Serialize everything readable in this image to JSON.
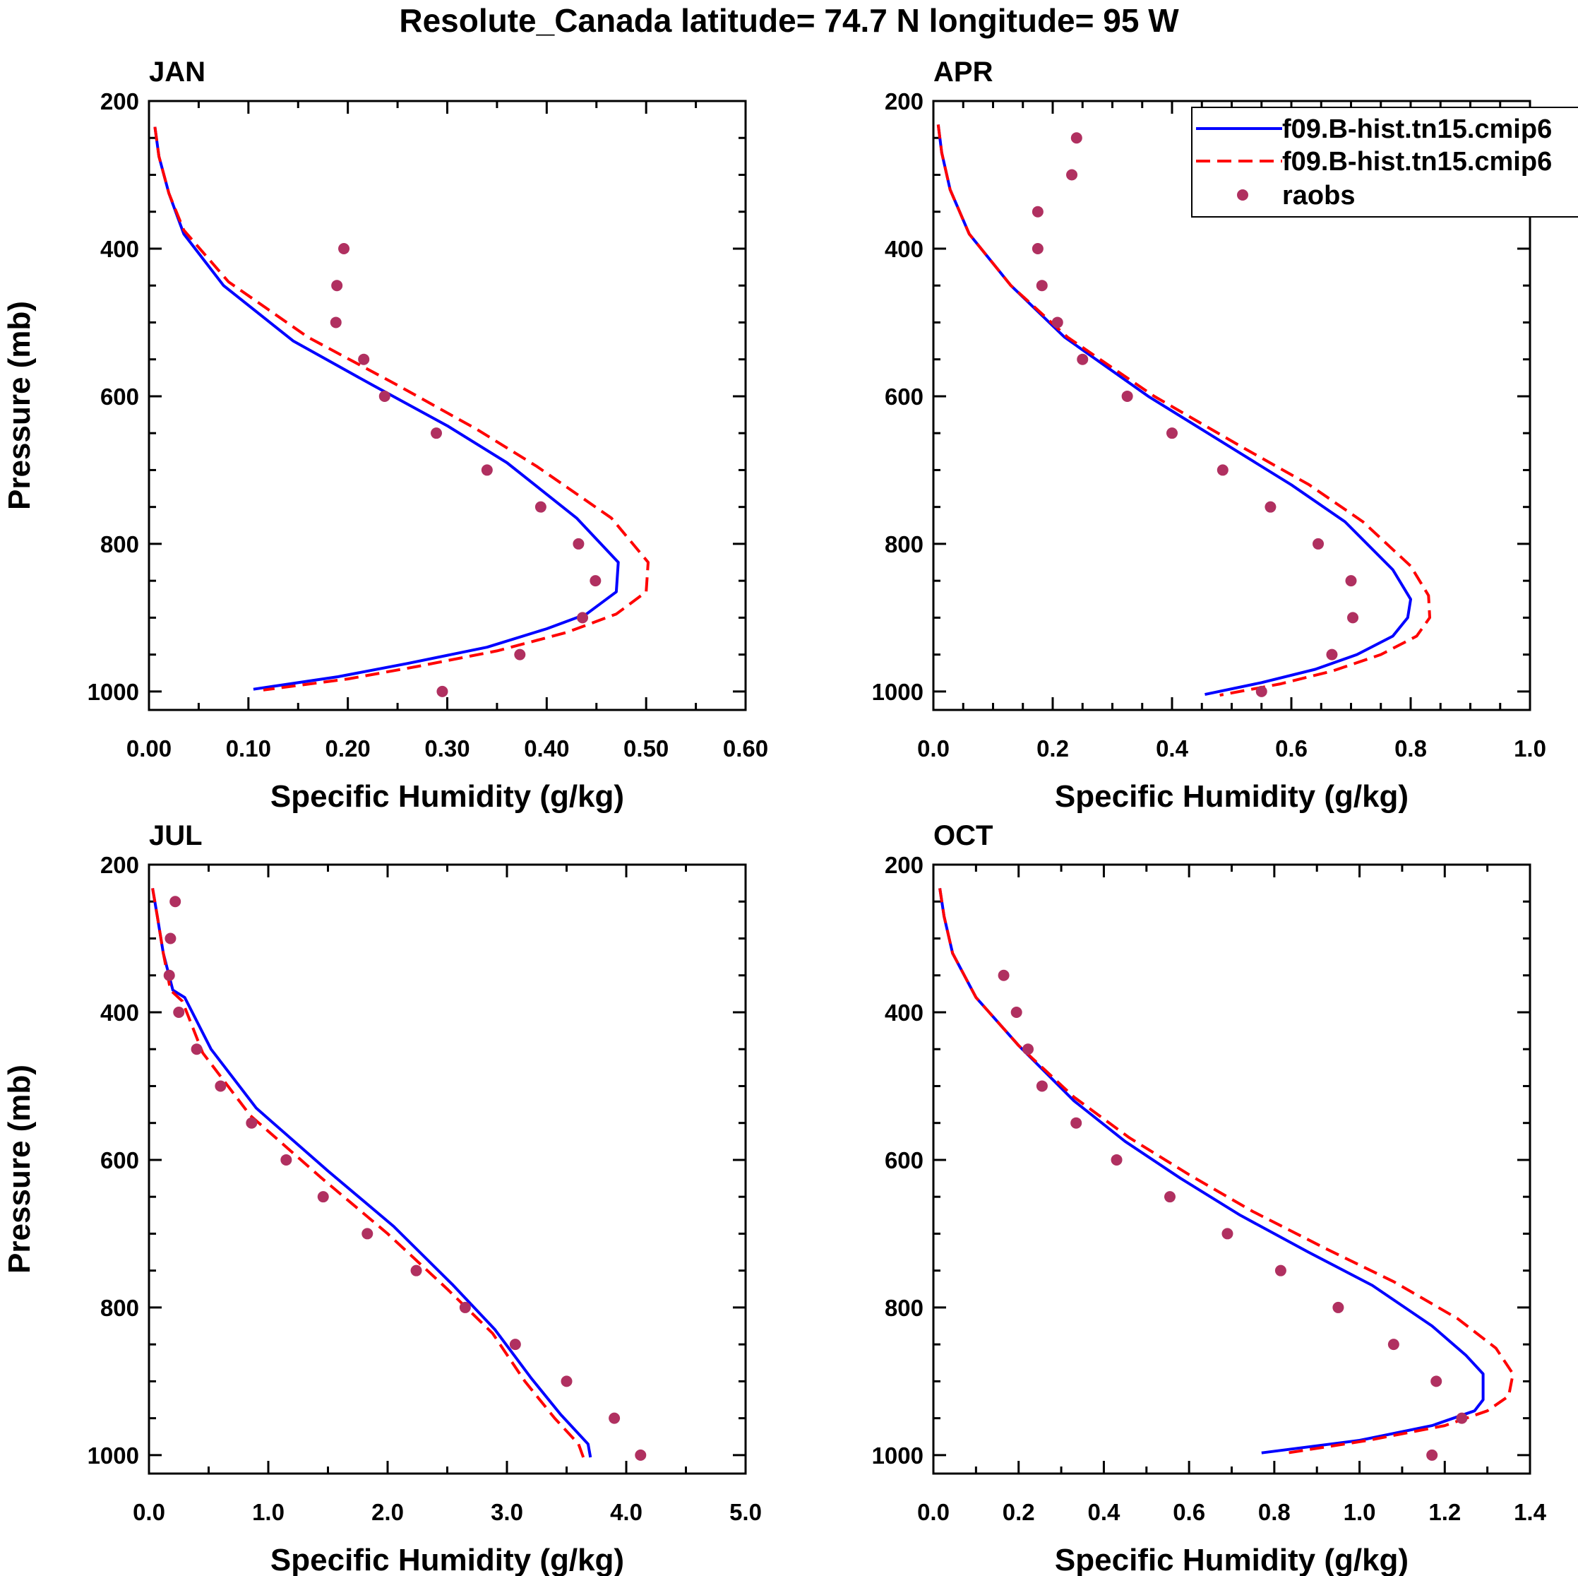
{
  "title": "Resolute_Canada  latitude= 74.7 N longitude= 95 W",
  "colors": {
    "model1": "#0000ff",
    "model2": "#ff0000",
    "raobs": "#b03060",
    "axis": "#000000"
  },
  "legend": {
    "position": "top-right of APR panel",
    "entries": [
      {
        "label": "f09.B-hist.tn15.cmip6",
        "style": "solid",
        "color": "#0000ff"
      },
      {
        "label": "f09.B-hist.tn15.cmip6",
        "style": "dashed",
        "color": "#ff0000"
      },
      {
        "label": "raobs",
        "style": "marker",
        "color": "#b03060"
      }
    ]
  },
  "chart_data": [
    {
      "type": "line",
      "panel": "JAN",
      "title": "JAN",
      "xlabel": "Specific Humidity (g/kg)",
      "ylabel": "Pressure (mb)",
      "xlim": [
        0,
        0.6
      ],
      "ylim": [
        200,
        1025
      ],
      "xticks": [
        0,
        0.1,
        0.2,
        0.3,
        0.4,
        0.5,
        0.6
      ],
      "xticklabels": [
        "0.00",
        "0.10",
        "0.20",
        "0.30",
        "0.40",
        "0.50",
        "0.60"
      ],
      "xminor": 0.05,
      "yticks": [
        200,
        400,
        600,
        800,
        1000
      ],
      "yticklabels": [
        "200",
        "400",
        "600",
        "800",
        "1000"
      ],
      "series": [
        {
          "name": "f09.B-hist.tn15.cmip6",
          "style": "solid",
          "x": [
            0.006,
            0.01,
            0.02,
            0.035,
            0.075,
            0.145,
            0.225,
            0.3,
            0.36,
            0.43,
            0.472,
            0.47,
            0.44,
            0.4,
            0.34,
            0.26,
            0.19,
            0.105
          ],
          "y": [
            235,
            275,
            325,
            380,
            450,
            525,
            585,
            640,
            690,
            765,
            825,
            865,
            895,
            915,
            940,
            962,
            980,
            997
          ]
        },
        {
          "name": "f09.B-hist.tn15.cmip6",
          "style": "dashed",
          "x": [
            0.006,
            0.01,
            0.02,
            0.035,
            0.08,
            0.16,
            0.25,
            0.33,
            0.39,
            0.465,
            0.502,
            0.5,
            0.47,
            0.42,
            0.35,
            0.27,
            0.2,
            0.115
          ],
          "y": [
            235,
            275,
            325,
            375,
            445,
            520,
            585,
            645,
            695,
            765,
            825,
            865,
            895,
            920,
            945,
            966,
            983,
            998
          ]
        }
      ],
      "points": {
        "name": "raobs",
        "x": [
          0.196,
          0.189,
          0.188,
          0.216,
          0.237,
          0.289,
          0.34,
          0.394,
          0.432,
          0.449,
          0.436,
          0.373,
          0.295
        ],
        "y": [
          400,
          450,
          500,
          550,
          600,
          650,
          700,
          750,
          800,
          850,
          900,
          950,
          1000
        ]
      }
    },
    {
      "type": "line",
      "panel": "APR",
      "title": "APR",
      "xlabel": "Specific Humidity (g/kg)",
      "ylabel": "",
      "xlim": [
        0,
        1.0
      ],
      "ylim": [
        200,
        1025
      ],
      "xticks": [
        0,
        0.2,
        0.4,
        0.6,
        0.8,
        1.0
      ],
      "xticklabels": [
        "0.0",
        "0.2",
        "0.4",
        "0.6",
        "0.8",
        "1.0"
      ],
      "xminor": 0.05,
      "yticks": [
        200,
        400,
        600,
        800,
        1000
      ],
      "yticklabels": [
        "200",
        "400",
        "600",
        "800",
        "1000"
      ],
      "series": [
        {
          "name": "f09.B-hist.tn15.cmip6",
          "style": "solid",
          "x": [
            0.008,
            0.014,
            0.028,
            0.06,
            0.13,
            0.22,
            0.36,
            0.5,
            0.6,
            0.69,
            0.77,
            0.8,
            0.795,
            0.77,
            0.71,
            0.64,
            0.55,
            0.455
          ],
          "y": [
            232,
            270,
            320,
            380,
            450,
            520,
            600,
            670,
            720,
            770,
            835,
            875,
            900,
            925,
            950,
            970,
            988,
            1004
          ]
        },
        {
          "name": "f09.B-hist.tn15.cmip6",
          "style": "dashed",
          "x": [
            0.008,
            0.014,
            0.028,
            0.06,
            0.13,
            0.225,
            0.37,
            0.52,
            0.63,
            0.72,
            0.8,
            0.83,
            0.832,
            0.81,
            0.75,
            0.67,
            0.58,
            0.48
          ],
          "y": [
            232,
            270,
            320,
            380,
            450,
            520,
            600,
            670,
            720,
            770,
            830,
            870,
            900,
            925,
            950,
            972,
            990,
            1005
          ]
        }
      ],
      "points": {
        "name": "raobs",
        "x": [
          0.24,
          0.232,
          0.175,
          0.175,
          0.182,
          0.208,
          0.25,
          0.325,
          0.4,
          0.485,
          0.565,
          0.645,
          0.7,
          0.703,
          0.668,
          0.55
        ],
        "y": [
          250,
          300,
          350,
          400,
          450,
          500,
          550,
          600,
          650,
          700,
          750,
          800,
          850,
          900,
          950,
          1000
        ]
      }
    },
    {
      "type": "line",
      "panel": "JUL",
      "title": "JUL",
      "xlabel": "Specific Humidity (g/kg)",
      "ylabel": "Pressure (mb)",
      "xlim": [
        0,
        5.0
      ],
      "ylim": [
        200,
        1025
      ],
      "xticks": [
        0,
        1,
        2,
        3,
        4,
        5
      ],
      "xticklabels": [
        "0.0",
        "1.0",
        "2.0",
        "3.0",
        "4.0",
        "5.0"
      ],
      "xminor": 0.5,
      "yticks": [
        200,
        400,
        600,
        800,
        1000
      ],
      "yticklabels": [
        "200",
        "400",
        "600",
        "800",
        "1000"
      ],
      "series": [
        {
          "name": "f09.B-hist.tn15.cmip6",
          "style": "solid",
          "x": [
            0.03,
            0.07,
            0.12,
            0.2,
            0.3,
            0.52,
            0.9,
            1.5,
            2.05,
            2.55,
            2.9,
            3.2,
            3.45,
            3.68,
            3.7
          ],
          "y": [
            232,
            270,
            320,
            370,
            380,
            450,
            530,
            615,
            690,
            770,
            830,
            895,
            945,
            985,
            1003
          ]
        },
        {
          "name": "f09.B-hist.tn15.cmip6",
          "style": "dashed",
          "x": [
            0.03,
            0.07,
            0.12,
            0.18,
            0.28,
            0.45,
            0.85,
            1.45,
            2.0,
            2.5,
            2.88,
            3.15,
            3.4,
            3.6,
            3.64
          ],
          "y": [
            232,
            270,
            320,
            370,
            385,
            455,
            540,
            625,
            700,
            775,
            835,
            900,
            950,
            985,
            1003
          ]
        }
      ],
      "points": {
        "name": "raobs",
        "x": [
          0.22,
          0.18,
          0.17,
          0.25,
          0.4,
          0.6,
          0.86,
          1.15,
          1.46,
          1.83,
          2.24,
          2.65,
          3.07,
          3.5,
          3.9,
          4.12
        ],
        "y": [
          250,
          300,
          350,
          400,
          450,
          500,
          550,
          600,
          650,
          700,
          750,
          800,
          850,
          900,
          950,
          1000
        ]
      }
    },
    {
      "type": "line",
      "panel": "OCT",
      "title": "OCT",
      "xlabel": "Specific Humidity (g/kg)",
      "ylabel": "",
      "xlim": [
        0,
        1.4
      ],
      "ylim": [
        200,
        1025
      ],
      "xticks": [
        0,
        0.2,
        0.4,
        0.6,
        0.8,
        1.0,
        1.2,
        1.4
      ],
      "xticklabels": [
        "0.0",
        "0.2",
        "0.4",
        "0.6",
        "0.8",
        "1.0",
        "1.2",
        "1.4"
      ],
      "xminor": 0.1,
      "yticks": [
        200,
        400,
        600,
        800,
        1000
      ],
      "yticklabels": [
        "200",
        "400",
        "600",
        "800",
        "1000"
      ],
      "series": [
        {
          "name": "f09.B-hist.tn15.cmip6",
          "style": "solid",
          "x": [
            0.015,
            0.025,
            0.045,
            0.1,
            0.2,
            0.33,
            0.45,
            0.58,
            0.72,
            0.88,
            1.03,
            1.17,
            1.25,
            1.29,
            1.29,
            1.27,
            1.17,
            1.0,
            0.77
          ],
          "y": [
            232,
            270,
            320,
            380,
            445,
            520,
            575,
            625,
            675,
            725,
            770,
            825,
            865,
            890,
            925,
            940,
            960,
            980,
            997
          ]
        },
        {
          "name": "f09.B-hist.tn15.cmip6",
          "style": "dashed",
          "x": [
            0.015,
            0.025,
            0.045,
            0.1,
            0.2,
            0.33,
            0.46,
            0.6,
            0.75,
            0.92,
            1.08,
            1.23,
            1.32,
            1.36,
            1.35,
            1.3,
            1.2,
            1.02,
            0.82
          ],
          "y": [
            232,
            270,
            320,
            380,
            445,
            515,
            570,
            620,
            670,
            720,
            765,
            815,
            855,
            890,
            920,
            940,
            960,
            980,
            998
          ]
        }
      ],
      "points": {
        "name": "raobs",
        "x": [
          0.165,
          0.195,
          0.222,
          0.255,
          0.335,
          0.43,
          0.555,
          0.69,
          0.815,
          0.95,
          1.08,
          1.18,
          1.24,
          1.17
        ],
        "y": [
          350,
          400,
          450,
          500,
          550,
          600,
          650,
          700,
          750,
          800,
          850,
          900,
          950,
          1000
        ]
      }
    }
  ]
}
